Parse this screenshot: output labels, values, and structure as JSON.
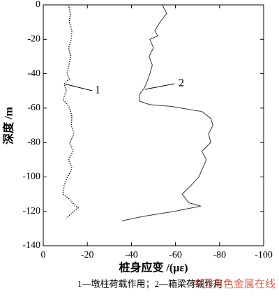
{
  "chart_data": {
    "type": "line",
    "xlabel": "桩身应变 /(με)",
    "ylabel": "深度 /m",
    "caption": "1—墩柱荷载作用；2—箱梁荷载作用",
    "watermark": "中国有色金属在线",
    "xlim": [
      0,
      -100
    ],
    "xticks": [
      0,
      -20,
      -40,
      -60,
      -80,
      -100
    ],
    "ylim": [
      0,
      -140
    ],
    "yticks": [
      0,
      -20,
      -40,
      -60,
      -80,
      -100,
      -120,
      -140
    ],
    "series": [
      {
        "name": "1",
        "color": "#000000",
        "dash": "dotted",
        "x": [
          -11.5,
          -12.3,
          -11.8,
          -13,
          -12.7,
          -11.5,
          -12.5,
          -10.8,
          -11.8,
          -9.5,
          -10.5,
          -8.9,
          -11,
          -12,
          -13,
          -12.7,
          -14,
          -12,
          -13.5,
          -11.5,
          -13,
          -11,
          -9.5,
          -8.9,
          -12,
          -14,
          -15.8,
          -13,
          -10.4
        ],
        "y": [
          0,
          -5,
          -10,
          -15,
          -20,
          -25,
          -30,
          -40,
          -43,
          -46,
          -50,
          -55,
          -58,
          -60,
          -65,
          -70,
          -75,
          -80,
          -85,
          -90,
          -95,
          -100,
          -105,
          -110,
          -113,
          -116,
          -118,
          -121,
          -124
        ]
      },
      {
        "name": "2",
        "color": "#333333",
        "dash": "solid",
        "x": [
          -54,
          -56,
          -53,
          -50.6,
          -52,
          -48.4,
          -50,
          -48,
          -49.5,
          -48.4,
          -47,
          -46,
          -43.7,
          -43.7,
          -48.4,
          -58,
          -72,
          -76,
          -77,
          -75,
          -76,
          -72,
          -74,
          -70.6,
          -67,
          -63,
          -66,
          -71.5,
          -59.5,
          -45,
          -35.8
        ],
        "y": [
          0,
          -5,
          -10,
          -15,
          -18,
          -20,
          -25,
          -30,
          -35,
          -40,
          -45,
          -48,
          -52,
          -56,
          -58,
          -59,
          -62,
          -66,
          -70,
          -75,
          -80,
          -85,
          -90,
          -100,
          -105,
          -110,
          -115,
          -117,
          -120,
          -123,
          -125.5
        ]
      }
    ]
  }
}
